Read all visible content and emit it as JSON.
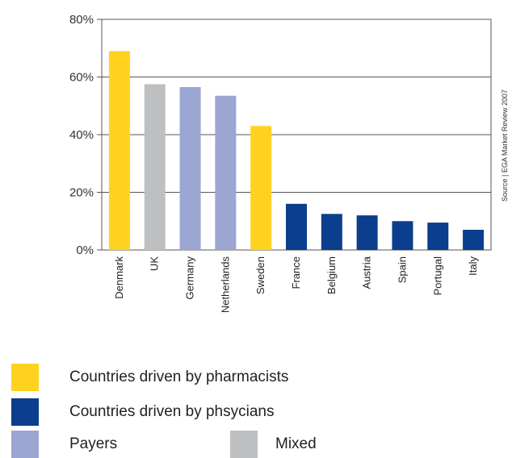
{
  "chart_data": {
    "type": "bar",
    "categories": [
      "Denmark",
      "UK",
      "Germany",
      "Netherlands",
      "Sweden",
      "France",
      "Belgium",
      "Austria",
      "Spain",
      "Portugal",
      "Italy"
    ],
    "values": [
      69,
      57.5,
      56.5,
      53.5,
      43,
      16,
      12.5,
      12,
      10,
      9.5,
      7
    ],
    "groups": [
      "pharmacists",
      "mixed",
      "payers",
      "payers",
      "pharmacists",
      "physicians",
      "physicians",
      "physicians",
      "physicians",
      "physicians",
      "physicians"
    ],
    "group_colors": {
      "pharmacists": "#FFD21F",
      "physicians": "#0B3E8C",
      "payers": "#9BA6D2",
      "mixed": "#BEBFC1"
    },
    "ylim": [
      0,
      80
    ],
    "yticks": [
      0,
      20,
      40,
      60,
      80
    ],
    "ytick_labels": [
      "0%",
      "20%",
      "40%",
      "60%",
      "80%"
    ],
    "title": "",
    "xlabel": "",
    "ylabel": "",
    "grid": true,
    "source_note": "Source | EGA Market Review 2007",
    "legend_position": "bottom-left",
    "legend": [
      {
        "label": "Countries driven by pharmacists",
        "group": "pharmacists"
      },
      {
        "label": "Countries driven by phsycians",
        "group": "physicians"
      },
      {
        "label": "Payers",
        "group": "payers"
      },
      {
        "label": "Mixed",
        "group": "mixed"
      }
    ]
  }
}
